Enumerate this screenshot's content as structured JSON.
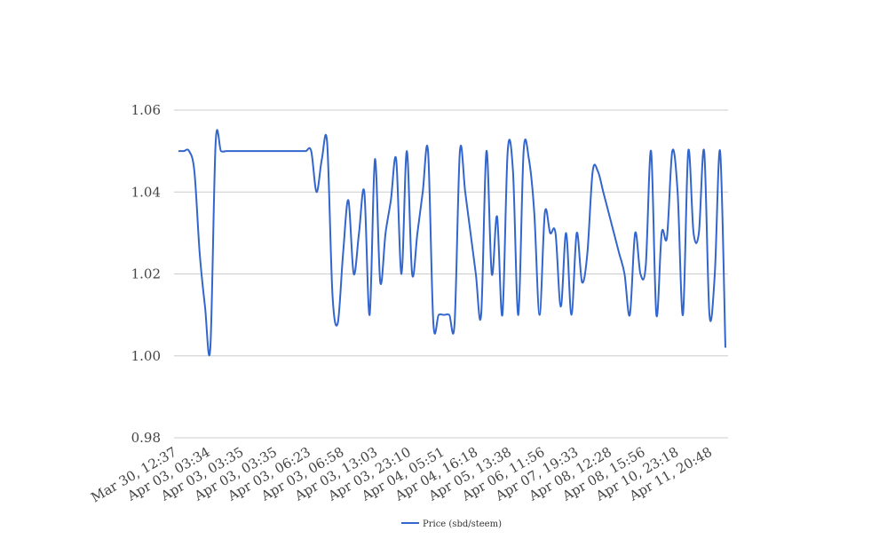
{
  "chart_data": {
    "type": "line",
    "title": "",
    "xlabel": "",
    "ylabel": "",
    "ylim": [
      0.98,
      1.06
    ],
    "yticks": [
      0.98,
      1.0,
      1.02,
      1.04,
      1.06
    ],
    "ytick_labels": [
      "0.98",
      "1.00",
      "1.02",
      "1.04",
      "1.06"
    ],
    "grid": true,
    "legend_position": "bottom-center",
    "x_tick_labels": [
      "Mar 30, 12:37",
      "Apr 03, 03:34",
      "Apr 03, 03:35",
      "Apr 03, 03:35",
      "Apr 03, 06:23",
      "Apr 03, 06:58",
      "Apr 03, 13:03",
      "Apr 03, 23:10",
      "Apr 04, 05:51",
      "Apr 04, 16:18",
      "Apr 05, 13:38",
      "Apr 06, 11:56",
      "Apr 07, 19:33",
      "Apr 08, 12:28",
      "Apr 08, 15:56",
      "Apr 10, 23:18",
      "Apr 11, 20:48"
    ],
    "series": [
      {
        "name": "Price (sbd/steem)",
        "color": "#3366cc",
        "values": [
          1.05,
          1.05,
          1.05,
          1.045,
          1.025,
          1.012,
          1.002,
          1.052,
          1.05,
          1.05,
          1.05,
          1.05,
          1.05,
          1.05,
          1.05,
          1.05,
          1.05,
          1.05,
          1.05,
          1.05,
          1.05,
          1.05,
          1.05,
          1.05,
          1.05,
          1.05,
          1.04,
          1.048,
          1.052,
          1.015,
          1.008,
          1.025,
          1.038,
          1.02,
          1.03,
          1.04,
          1.01,
          1.048,
          1.018,
          1.03,
          1.038,
          1.048,
          1.02,
          1.05,
          1.02,
          1.03,
          1.04,
          1.05,
          1.008,
          1.01,
          1.01,
          1.01,
          1.008,
          1.05,
          1.04,
          1.03,
          1.02,
          1.01,
          1.05,
          1.02,
          1.034,
          1.01,
          1.05,
          1.045,
          1.01,
          1.05,
          1.048,
          1.035,
          1.01,
          1.035,
          1.03,
          1.03,
          1.012,
          1.03,
          1.01,
          1.03,
          1.018,
          1.025,
          1.045,
          1.045,
          1.04,
          1.035,
          1.03,
          1.025,
          1.02,
          1.01,
          1.03,
          1.02,
          1.022,
          1.05,
          1.01,
          1.03,
          1.029,
          1.05,
          1.04,
          1.01,
          1.05,
          1.03,
          1.03,
          1.05,
          1.01,
          1.02,
          1.05,
          1.002
        ]
      }
    ]
  }
}
